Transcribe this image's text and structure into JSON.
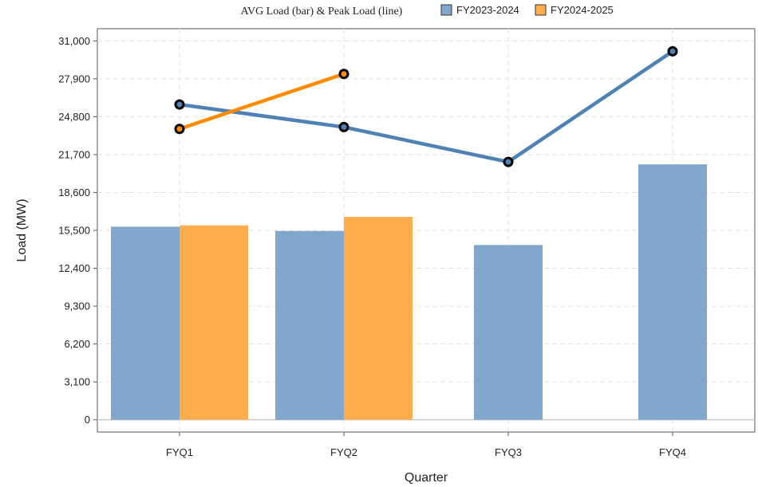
{
  "chart_data": {
    "type": "bar",
    "title": "AVG Load (bar) & Peak Load (line)",
    "xlabel": "Quarter",
    "ylabel": "Load (MW)",
    "categories": [
      "FYQ1",
      "FYQ2",
      "FYQ3",
      "FYQ4"
    ],
    "ylim": [
      -1000,
      32000
    ],
    "yticks": [
      0,
      3100,
      6200,
      9300,
      12400,
      15500,
      18600,
      21700,
      24800,
      27900,
      31000
    ],
    "ytick_labels": [
      "0",
      "3,100",
      "6,200",
      "9,300",
      "12,400",
      "15,500",
      "18,600",
      "21,700",
      "24,800",
      "27,900",
      "31,000"
    ],
    "grid": true,
    "legend_position": "top",
    "series": [
      {
        "name": "FY2023-2024",
        "color": "#4e81b4",
        "bar_color": "#81a8cc",
        "bar_values": [
          15800,
          15450,
          14300,
          20900
        ],
        "line_values": [
          25800,
          23950,
          21100,
          30150
        ]
      },
      {
        "name": "FY2024-2025",
        "color": "#ff8c00",
        "bar_color": "#ffac4d",
        "bar_values": [
          15900,
          16600,
          null,
          null
        ],
        "line_values": [
          23800,
          28300,
          null,
          null
        ]
      }
    ]
  }
}
